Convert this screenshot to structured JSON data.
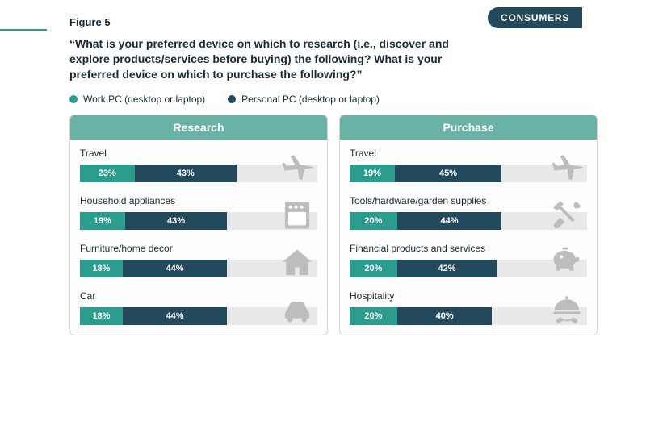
{
  "figure_label": "Figure 5",
  "question": "“What is your preferred device on which to research (i.e., discover and explore products/services before buying) the following? What is your preferred device on which to purchase the following?”",
  "badge": {
    "text": "CONSUMERS",
    "bg": "#234a5c"
  },
  "legend": [
    {
      "label": "Work PC (desktop or laptop)",
      "color": "#2a9d8f"
    },
    {
      "label": "Personal PC (desktop or laptop)",
      "color": "#234a5c"
    }
  ],
  "panel_header_bg": "#69b3a6",
  "bar_track_bg": "#e9e9e9",
  "icon_color": "#bdbdbd",
  "bar_scale_max": 100,
  "panels": [
    {
      "title": "Research",
      "rows": [
        {
          "label": "Travel",
          "icon": "plane",
          "seg1": {
            "pct": 23,
            "text": "23%",
            "color": "#2a9d8f"
          },
          "seg2": {
            "pct": 43,
            "text": "43%",
            "color": "#234a5c"
          }
        },
        {
          "label": "Household appliances",
          "icon": "oven",
          "seg1": {
            "pct": 19,
            "text": "19%",
            "color": "#2a9d8f"
          },
          "seg2": {
            "pct": 43,
            "text": "43%",
            "color": "#234a5c"
          }
        },
        {
          "label": "Furniture/home decor",
          "icon": "house",
          "seg1": {
            "pct": 18,
            "text": "18%",
            "color": "#2a9d8f"
          },
          "seg2": {
            "pct": 44,
            "text": "44%",
            "color": "#234a5c"
          }
        },
        {
          "label": "Car",
          "icon": "car",
          "seg1": {
            "pct": 18,
            "text": "18%",
            "color": "#2a9d8f"
          },
          "seg2": {
            "pct": 44,
            "text": "44%",
            "color": "#234a5c"
          }
        }
      ]
    },
    {
      "title": "Purchase",
      "rows": [
        {
          "label": "Travel",
          "icon": "plane",
          "seg1": {
            "pct": 19,
            "text": "19%",
            "color": "#2a9d8f"
          },
          "seg2": {
            "pct": 45,
            "text": "45%",
            "color": "#234a5c"
          }
        },
        {
          "label": "Tools/hardware/garden supplies",
          "icon": "tools",
          "seg1": {
            "pct": 20,
            "text": "20%",
            "color": "#2a9d8f"
          },
          "seg2": {
            "pct": 44,
            "text": "44%",
            "color": "#234a5c"
          }
        },
        {
          "label": "Financial products and services",
          "icon": "piggy",
          "seg1": {
            "pct": 20,
            "text": "20%",
            "color": "#2a9d8f"
          },
          "seg2": {
            "pct": 42,
            "text": "42%",
            "color": "#234a5c"
          }
        },
        {
          "label": "Hospitality",
          "icon": "cloche",
          "seg1": {
            "pct": 20,
            "text": "20%",
            "color": "#2a9d8f"
          },
          "seg2": {
            "pct": 40,
            "text": "40%",
            "color": "#234a5c"
          }
        }
      ]
    }
  ]
}
